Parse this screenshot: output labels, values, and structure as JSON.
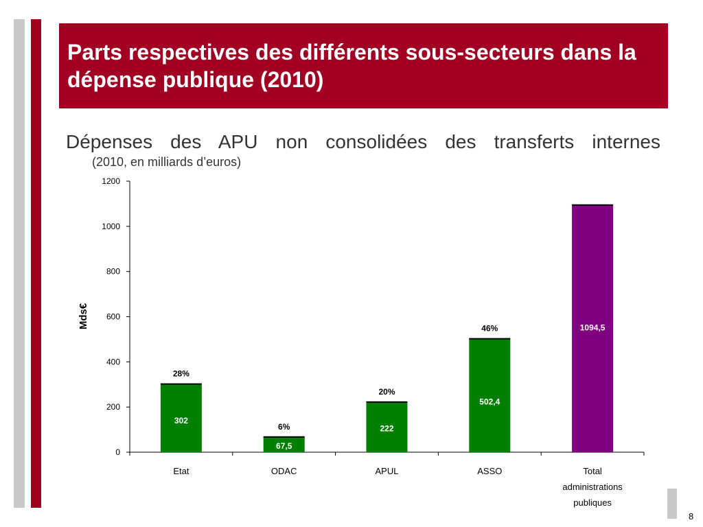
{
  "title": "Parts respectives des différents sous-secteurs dans la dépense publique (2010)",
  "subtitle": "Dépenses des APU non consolidées des transferts internes",
  "subnote": "(2010, en milliards d’euros)",
  "page_number": "8",
  "colors": {
    "banner": "#a10022",
    "green": "#008000",
    "purple": "#800080"
  },
  "chart_data": {
    "type": "bar",
    "ylabel": "Mds€",
    "ylim": [
      0,
      1200
    ],
    "yticks": [
      "0",
      "200",
      "400",
      "600",
      "800",
      "1000",
      "1200"
    ],
    "categories": [
      "Etat",
      "ODAC",
      "APUL",
      "ASSO",
      "Total administrations publiques"
    ],
    "category_lines": [
      [
        "Etat"
      ],
      [
        "ODAC"
      ],
      [
        "APUL"
      ],
      [
        "ASSO"
      ],
      [
        "Total",
        "administrations",
        "publiques"
      ]
    ],
    "values": [
      302,
      67.5,
      222,
      502.4,
      1094.5
    ],
    "value_labels": [
      "302",
      "67,5",
      "222",
      "502,4",
      "1094,5"
    ],
    "shares": [
      "28%",
      "6%",
      "20%",
      "46%",
      ""
    ],
    "bar_colors": [
      "#008000",
      "#008000",
      "#008000",
      "#008000",
      "#800080"
    ],
    "grid": false
  }
}
